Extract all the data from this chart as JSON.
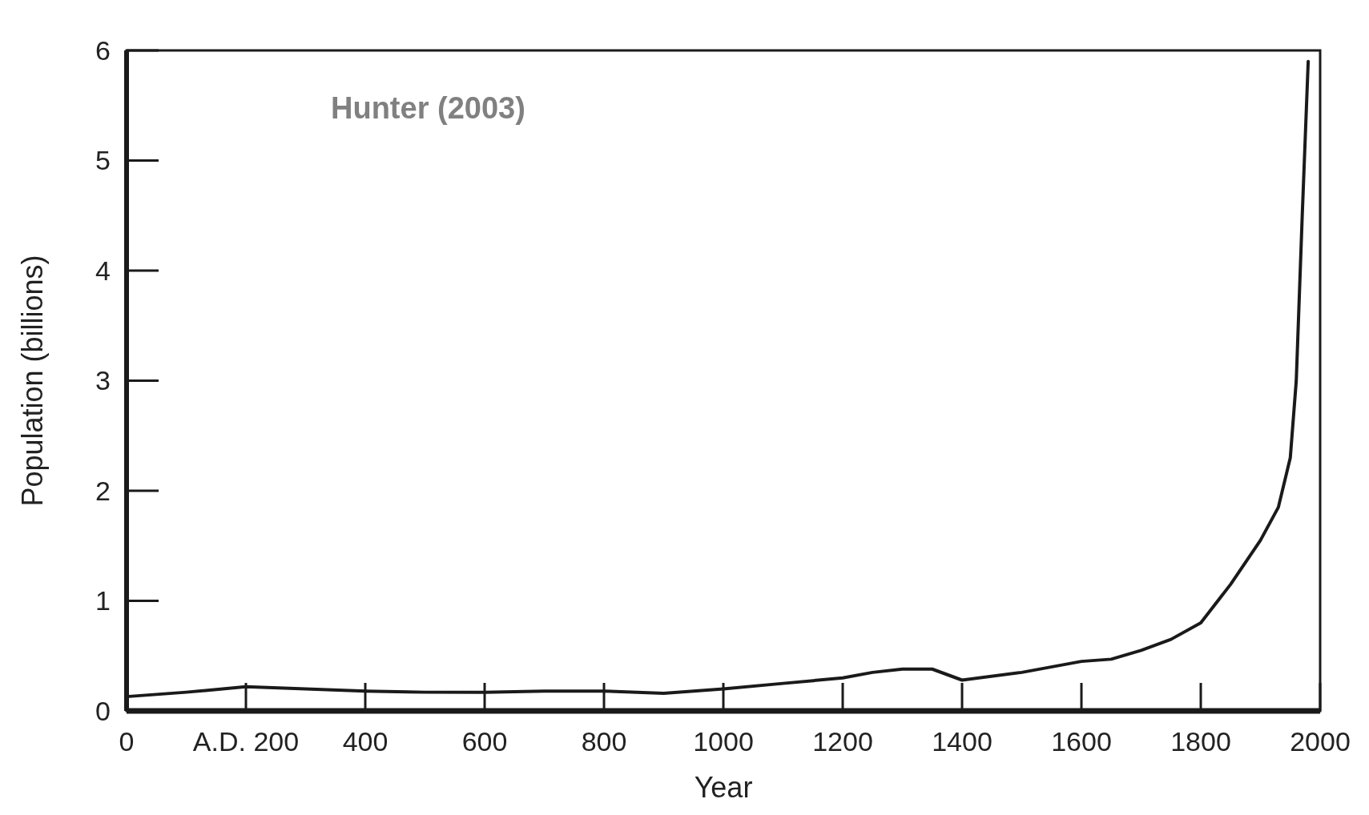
{
  "chart_data": {
    "type": "line",
    "xlabel": "Year",
    "ylabel": "Population (billions)",
    "annotations": [
      "Hunter (2003)"
    ],
    "x": [
      0,
      100,
      200,
      300,
      400,
      500,
      600,
      700,
      800,
      900,
      1000,
      1100,
      1200,
      1250,
      1300,
      1350,
      1400,
      1500,
      1600,
      1650,
      1700,
      1750,
      1800,
      1850,
      1900,
      1930,
      1950,
      1960,
      1970,
      1980
    ],
    "series": [
      {
        "color": "#1a1a1a",
        "values": [
          0.13,
          0.17,
          0.22,
          0.2,
          0.18,
          0.17,
          0.17,
          0.18,
          0.18,
          0.16,
          0.2,
          0.25,
          0.3,
          0.35,
          0.38,
          0.38,
          0.28,
          0.35,
          0.45,
          0.47,
          0.55,
          0.65,
          0.8,
          1.15,
          1.55,
          1.85,
          2.3,
          3.0,
          4.5,
          5.9
        ]
      }
    ],
    "xlim": [
      0,
      2000
    ],
    "xticks": [
      0,
      {
        "value": 200,
        "label": "A.D. 200"
      },
      400,
      600,
      800,
      1000,
      1200,
      1400,
      1600,
      1800,
      2000
    ],
    "ylim": [
      0,
      6
    ],
    "yticks": [
      0,
      1,
      2,
      3,
      4,
      5,
      6
    ],
    "grid": false,
    "marker": "none",
    "line_style": "solid"
  }
}
